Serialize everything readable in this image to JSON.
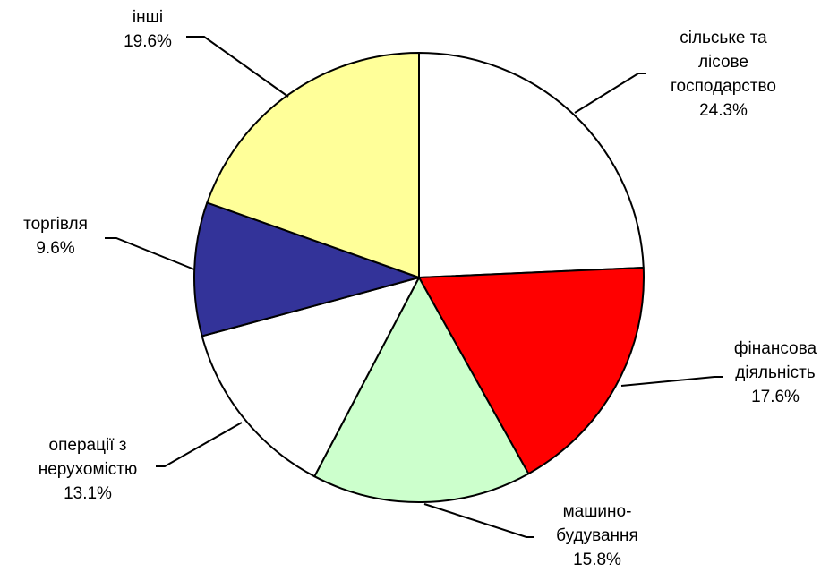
{
  "chart_data": {
    "type": "pie",
    "title": "",
    "slices": [
      {
        "name": "сільське та лісове господарство",
        "label_lines": [
          "сільське та",
          "лісове",
          "господарство",
          "24.3%"
        ],
        "value": 24.3,
        "color": "#ffffff"
      },
      {
        "name": "фінансова діяльність",
        "label_lines": [
          "фінансова",
          "діяльність",
          "17.6%"
        ],
        "value": 17.6,
        "color": "#ff0000"
      },
      {
        "name": "машино-будування",
        "label_lines": [
          "машино-",
          "будування",
          "15.8%"
        ],
        "value": 15.8,
        "color": "#ccffcc"
      },
      {
        "name": "операції з нерухомістю",
        "label_lines": [
          "операції з",
          "нерухомістю",
          "13.1%"
        ],
        "value": 13.1,
        "color": "#ffffff"
      },
      {
        "name": "торгівля",
        "label_lines": [
          "торгівля",
          "9.6%"
        ],
        "value": 9.6,
        "color": "#333399"
      },
      {
        "name": "інші",
        "label_lines": [
          "інші",
          "19.6%"
        ],
        "value": 19.6,
        "color": "#ffff99"
      }
    ],
    "start": "12 o'clock",
    "direction": "clockwise",
    "legend": "none",
    "outline_color": "#000000"
  }
}
